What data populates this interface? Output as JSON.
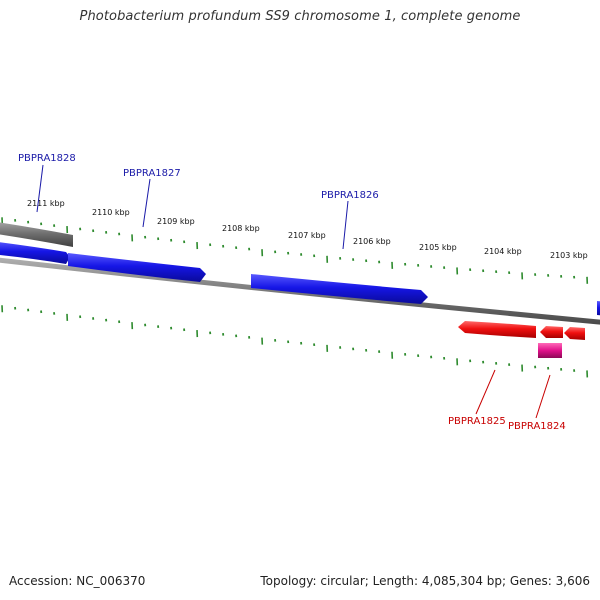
{
  "title": "Photobacterium profundum SS9 chromosome 1, complete genome",
  "footer": {
    "accession": "Accession: NC_006370",
    "stats": "Topology: circular; Length: 4,085,304 bp; Genes: 3,606"
  },
  "colors": {
    "backbone": "#7a7a7a",
    "tick": "#2e8b2e",
    "plus_strand_gene": "#1a1adc",
    "minus_strand_gene": "#e41a1a",
    "rna_feature": "#d4147a",
    "pseudo_feature": "#6e6e6e",
    "plus_label": "#1a1aa8",
    "minus_label": "#c80000"
  },
  "ruler": {
    "unit": "kbp",
    "labeled_ticks": [
      "2111 kbp",
      "2110 kbp",
      "2109 kbp",
      "2108 kbp",
      "2107 kbp",
      "2106 kbp",
      "2105 kbp",
      "2104 kbp",
      "2103 kbp"
    ]
  },
  "gene_labels": [
    {
      "name": "PBPRA1828",
      "strand": "plus"
    },
    {
      "name": "PBPRA1827",
      "strand": "plus"
    },
    {
      "name": "PBPRA1826",
      "strand": "plus"
    },
    {
      "name": "PBPRA1825",
      "strand": "minus"
    },
    {
      "name": "PBPRA1824",
      "strand": "minus"
    }
  ]
}
